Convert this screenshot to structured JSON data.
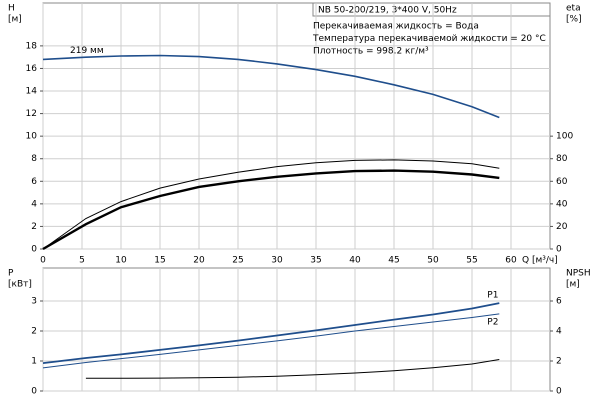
{
  "chart_data": [
    {
      "type": "line",
      "title": "NB 50-200/219, 3*400 V, 50Hz",
      "annotations": [
        "Перекачиваемая жидкость = Вода",
        "Температура перекачиваемой жидкости = 20 °C",
        "Плотность = 998.2 кг/м³"
      ],
      "ylabel": [
        "H",
        "[м]"
      ],
      "y2label": [
        "eta",
        "[%]"
      ],
      "xlabel": "Q [м³/ч]",
      "x": [
        0,
        5.5,
        10,
        15,
        20,
        25,
        30,
        35,
        40,
        45,
        50,
        55,
        58.5
      ],
      "xlim": [
        0,
        65
      ],
      "xticks": [
        0,
        5,
        10,
        15,
        20,
        25,
        30,
        35,
        40,
        45,
        50,
        55,
        60
      ],
      "ylim": [
        0,
        21.8
      ],
      "yticks": [
        0,
        2,
        4,
        6,
        8,
        10,
        12,
        14,
        16,
        18
      ],
      "y2lim": [
        0,
        218
      ],
      "y2ticks": [
        0,
        20,
        40,
        60,
        80,
        100
      ],
      "grid": true,
      "series": [
        {
          "name": "219 мм",
          "color": "#1f4e8c",
          "values": [
            16.8,
            17.0,
            17.1,
            17.15,
            17.05,
            16.8,
            16.4,
            15.9,
            15.3,
            14.55,
            13.7,
            12.6,
            11.65
          ]
        },
        {
          "color": "#000000",
          "axis": "y2",
          "values": [
            0,
            27,
            42,
            54,
            62,
            68,
            73,
            76.5,
            78.5,
            79,
            78,
            75.5,
            71.5
          ]
        },
        {
          "color": "#000000",
          "axis": "y2",
          "values": [
            0,
            22,
            37,
            47,
            55,
            60,
            64,
            67,
            69,
            69.5,
            68.5,
            66,
            63
          ]
        }
      ]
    },
    {
      "type": "line",
      "ylabel": [
        "P",
        "[кВт]"
      ],
      "y2label": [
        "NPSH",
        "[м]"
      ],
      "x": [
        0,
        5.5,
        10,
        15,
        20,
        25,
        30,
        35,
        40,
        45,
        50,
        55,
        58.5
      ],
      "ylim": [
        0,
        4.1
      ],
      "yticks": [
        0,
        1,
        2,
        3
      ],
      "y2lim": [
        0,
        8.2
      ],
      "y2ticks": [
        0,
        2,
        4,
        6
      ],
      "grid": true,
      "series": [
        {
          "name": "P1",
          "color": "#1f4e8c",
          "values": [
            0.93,
            1.1,
            1.22,
            1.37,
            1.52,
            1.68,
            1.85,
            2.02,
            2.2,
            2.38,
            2.55,
            2.75,
            2.93
          ]
        },
        {
          "name": "P2",
          "color": "#1f4e8c",
          "values": [
            0.77,
            0.95,
            1.08,
            1.22,
            1.37,
            1.52,
            1.67,
            1.83,
            2.0,
            2.15,
            2.3,
            2.45,
            2.57
          ]
        },
        {
          "color": "#000000",
          "axis": "y2",
          "values": [
            null,
            0.85,
            0.85,
            0.86,
            0.88,
            0.92,
            0.98,
            1.08,
            1.2,
            1.35,
            1.55,
            1.8,
            2.1
          ]
        }
      ]
    }
  ]
}
